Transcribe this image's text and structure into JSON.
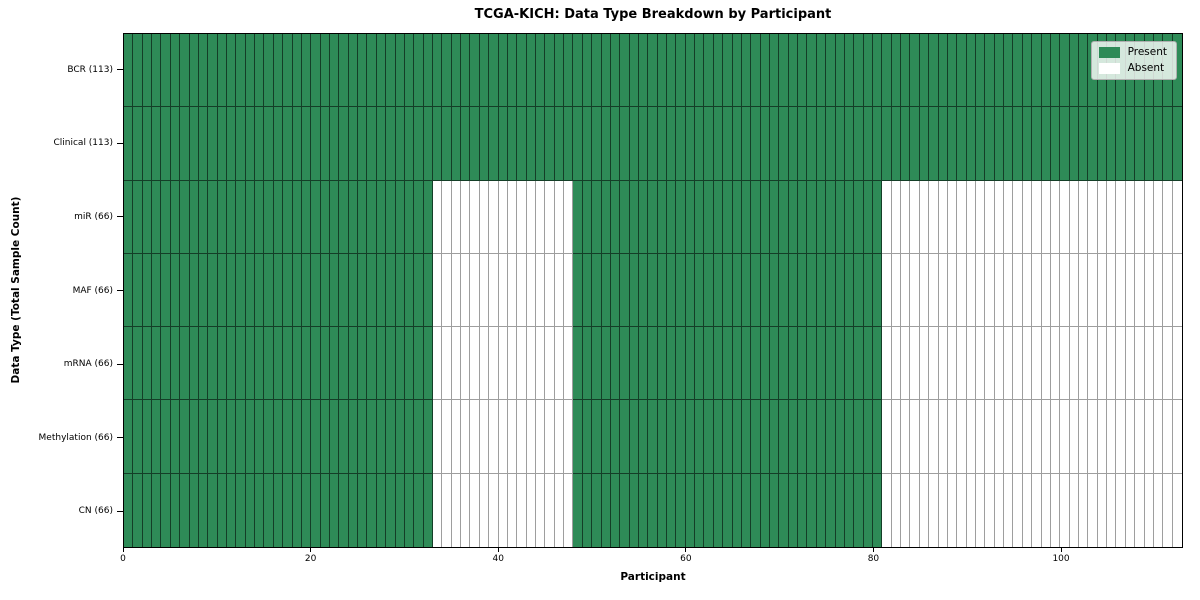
{
  "chart_data": {
    "type": "heatmap",
    "title": "TCGA-KICH: Data Type Breakdown by Participant",
    "xlabel": "Participant",
    "ylabel": "Data Type (Total Sample Count)",
    "n_participants": 113,
    "x_range": [
      0,
      113
    ],
    "x_ticks": [
      "0",
      "20",
      "40",
      "60",
      "80",
      "100"
    ],
    "x_tick_values": [
      0,
      20,
      40,
      60,
      80,
      100
    ],
    "grid": "cell-borders",
    "colors": {
      "present": "#2e8b57",
      "absent": "#ffffff",
      "spine": "#000000"
    },
    "legend": {
      "position": "upper right",
      "entries": [
        {
          "label": "Present",
          "color": "#2e8b57"
        },
        {
          "label": "Absent",
          "color": "#ffffff"
        }
      ]
    },
    "rows": [
      {
        "label": "BCR (113)",
        "total_samples": 113,
        "present_ranges": [
          [
            0,
            113
          ]
        ]
      },
      {
        "label": "Clinical (113)",
        "total_samples": 113,
        "present_ranges": [
          [
            0,
            113
          ]
        ]
      },
      {
        "label": "miR (66)",
        "total_samples": 66,
        "present_ranges": [
          [
            0,
            33
          ],
          [
            48,
            81
          ]
        ]
      },
      {
        "label": "MAF (66)",
        "total_samples": 66,
        "present_ranges": [
          [
            0,
            33
          ],
          [
            48,
            81
          ]
        ]
      },
      {
        "label": "mRNA (66)",
        "total_samples": 66,
        "present_ranges": [
          [
            0,
            33
          ],
          [
            48,
            81
          ]
        ]
      },
      {
        "label": "Methylation (66)",
        "total_samples": 66,
        "present_ranges": [
          [
            0,
            33
          ],
          [
            48,
            81
          ]
        ]
      },
      {
        "label": "CN (66)",
        "total_samples": 66,
        "present_ranges": [
          [
            0,
            33
          ],
          [
            48,
            81
          ]
        ]
      }
    ]
  }
}
